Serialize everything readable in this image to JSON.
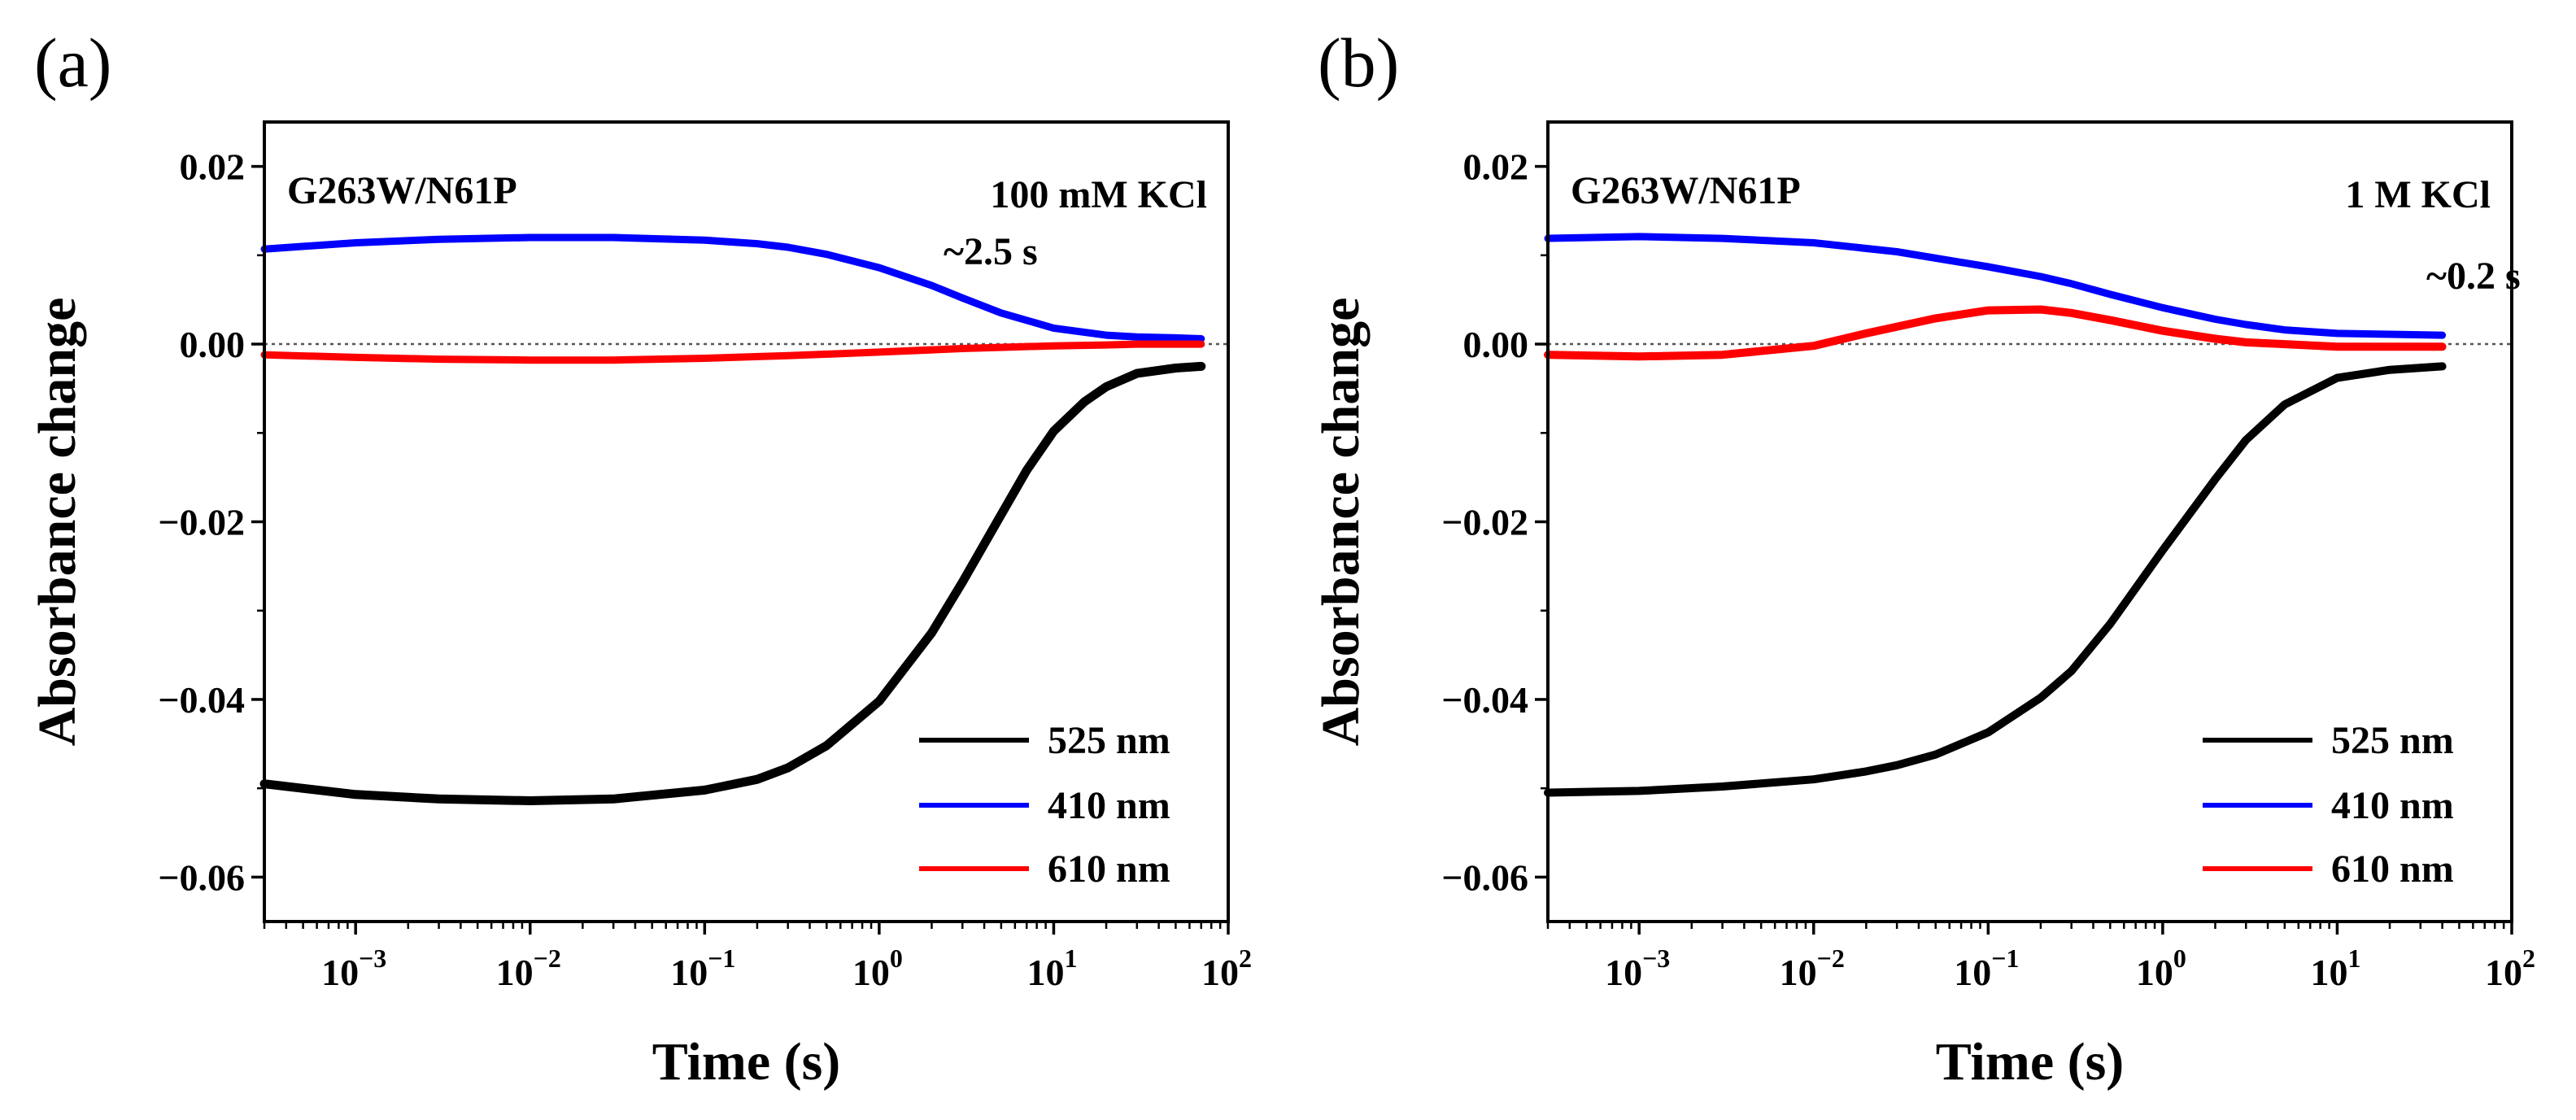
{
  "chart_data": [
    {
      "type": "line",
      "panel_label": "(a)",
      "sample_label": "G263W/N61P",
      "condition_label": "100 mM KCl",
      "time_annotation": "~2.5 s",
      "xlabel": "Time (s)",
      "ylabel": "Absorbance change",
      "xscale": "log",
      "xlim": [
        0.0003,
        100
      ],
      "ylim": [
        -0.065,
        0.025
      ],
      "x_ticks": [
        {
          "value": 0.001,
          "base": "10",
          "exp": "−3"
        },
        {
          "value": 0.01,
          "base": "10",
          "exp": "−2"
        },
        {
          "value": 0.1,
          "base": "10",
          "exp": "−1"
        },
        {
          "value": 1,
          "base": "10",
          "exp": "0"
        },
        {
          "value": 10,
          "base": "10",
          "exp": "1"
        },
        {
          "value": 100,
          "base": "10",
          "exp": "2"
        }
      ],
      "y_ticks": [
        {
          "value": 0.02,
          "label": "0.02"
        },
        {
          "value": 0.0,
          "label": "0.00"
        },
        {
          "value": -0.02,
          "label": "−0.02"
        },
        {
          "value": -0.04,
          "label": "−0.04"
        },
        {
          "value": -0.06,
          "label": "−0.06"
        }
      ],
      "reference_line_y": 0,
      "legend_position": "bottom-right",
      "series": [
        {
          "name": "525 nm",
          "color": "#000000",
          "x": [
            0.0003,
            0.001,
            0.003,
            0.01,
            0.03,
            0.1,
            0.2,
            0.3,
            0.5,
            1,
            2,
            3,
            5,
            7,
            10,
            15,
            20,
            30,
            50,
            70
          ],
          "y": [
            -0.0495,
            -0.0507,
            -0.0512,
            -0.0514,
            -0.0512,
            -0.0502,
            -0.049,
            -0.0477,
            -0.0452,
            -0.0402,
            -0.0325,
            -0.0268,
            -0.0192,
            -0.0142,
            -0.0098,
            -0.0065,
            -0.0048,
            -0.0033,
            -0.0027,
            -0.0025
          ],
          "trace_width": 11
        },
        {
          "name": "410 nm",
          "color": "#0000ff",
          "x": [
            0.0003,
            0.001,
            0.003,
            0.01,
            0.03,
            0.1,
            0.2,
            0.3,
            0.5,
            1,
            2,
            3,
            5,
            10,
            20,
            30,
            50,
            70
          ],
          "y": [
            0.0107,
            0.0114,
            0.0118,
            0.012,
            0.012,
            0.0117,
            0.0113,
            0.0109,
            0.0101,
            0.0086,
            0.0066,
            0.0052,
            0.0035,
            0.0018,
            0.001,
            0.0008,
            0.0007,
            0.0006
          ],
          "trace_width": 9
        },
        {
          "name": "610 nm",
          "color": "#ff0000",
          "x": [
            0.0003,
            0.001,
            0.003,
            0.01,
            0.03,
            0.1,
            0.3,
            1,
            3,
            10,
            20,
            30,
            50,
            70
          ],
          "y": [
            -0.0012,
            -0.0015,
            -0.0017,
            -0.0018,
            -0.0018,
            -0.0016,
            -0.0013,
            -0.0009,
            -0.0005,
            -0.0002,
            -0.0001,
            0.0,
            0.0,
            0.0
          ],
          "trace_width": 9
        }
      ]
    },
    {
      "type": "line",
      "panel_label": "(b)",
      "sample_label": "G263W/N61P",
      "condition_label": "1 M KCl",
      "time_annotation": "~0.2 s",
      "xlabel": "Time (s)",
      "ylabel": "Absorbance change",
      "xscale": "log",
      "xlim": [
        0.0003,
        100
      ],
      "ylim": [
        -0.065,
        0.025
      ],
      "x_ticks": [
        {
          "value": 0.001,
          "base": "10",
          "exp": "−3"
        },
        {
          "value": 0.01,
          "base": "10",
          "exp": "−2"
        },
        {
          "value": 0.1,
          "base": "10",
          "exp": "−1"
        },
        {
          "value": 1,
          "base": "10",
          "exp": "0"
        },
        {
          "value": 10,
          "base": "10",
          "exp": "1"
        },
        {
          "value": 100,
          "base": "10",
          "exp": "2"
        }
      ],
      "y_ticks": [
        {
          "value": 0.02,
          "label": "0.02"
        },
        {
          "value": 0.0,
          "label": "0.00"
        },
        {
          "value": -0.02,
          "label": "−0.02"
        },
        {
          "value": -0.04,
          "label": "−0.04"
        },
        {
          "value": -0.06,
          "label": "−0.06"
        }
      ],
      "reference_line_y": 0,
      "legend_position": "bottom-right",
      "series": [
        {
          "name": "525 nm",
          "color": "#000000",
          "x": [
            0.0003,
            0.001,
            0.003,
            0.01,
            0.02,
            0.03,
            0.05,
            0.1,
            0.2,
            0.3,
            0.5,
            1,
            2,
            3,
            5,
            10,
            20,
            40
          ],
          "y": [
            -0.0505,
            -0.0503,
            -0.0498,
            -0.049,
            -0.0481,
            -0.0474,
            -0.0462,
            -0.0437,
            -0.0398,
            -0.0368,
            -0.0315,
            -0.0232,
            -0.0152,
            -0.0108,
            -0.0068,
            -0.0038,
            -0.0029,
            -0.0025
          ],
          "trace_width": 10
        },
        {
          "name": "410 nm",
          "color": "#0000ff",
          "x": [
            0.0003,
            0.001,
            0.003,
            0.01,
            0.03,
            0.1,
            0.2,
            0.3,
            0.5,
            1,
            2,
            3,
            5,
            10,
            20,
            40
          ],
          "y": [
            0.0119,
            0.0121,
            0.0119,
            0.0114,
            0.0104,
            0.0087,
            0.0076,
            0.0068,
            0.0056,
            0.0041,
            0.0028,
            0.0022,
            0.0016,
            0.0012,
            0.0011,
            0.001
          ],
          "trace_width": 9
        },
        {
          "name": "610 nm",
          "color": "#ff0000",
          "x": [
            0.0003,
            0.001,
            0.003,
            0.01,
            0.02,
            0.05,
            0.1,
            0.2,
            0.3,
            0.5,
            1,
            2,
            3,
            5,
            10,
            20,
            40
          ],
          "y": [
            -0.0012,
            -0.0014,
            -0.0012,
            -0.0002,
            0.0012,
            0.0029,
            0.0038,
            0.0039,
            0.0035,
            0.0027,
            0.0015,
            0.0006,
            0.0002,
            0.0,
            -0.0003,
            -0.0003,
            -0.0003
          ],
          "trace_width": 10
        }
      ]
    }
  ]
}
